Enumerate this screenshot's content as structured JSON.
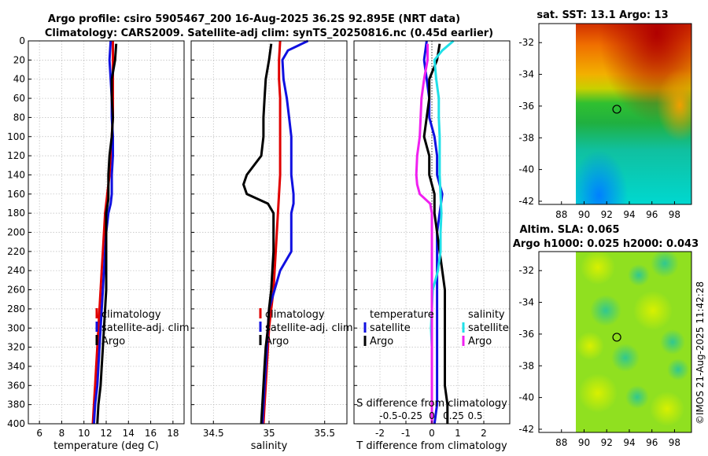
{
  "title_line1": "Argo profile: csiro 5905467_200 16-Aug-2025 36.2S 92.895E (NRT data)",
  "title_line2": "Climatology: CARS2009. Satellite-adj clim: synTS_20250816.nc (0.45d earlier)",
  "sst_title": "sat. SST: 13.1 Argo: 13",
  "sla_title1": "Altim. SLA: 0.065",
  "sla_title2": "Argo h1000: 0.025 h2000: 0.043",
  "watermark": "©IMOS 21-Aug-2025 11:42:28",
  "colors": {
    "climatology": "#e00000",
    "satellite": "#1010e0",
    "argo": "#000000",
    "s_satellite": "#20e0e8",
    "s_argo": "#f020f0"
  },
  "chart_data": [
    {
      "type": "line",
      "name": "temperature",
      "xlabel": "temperature (deg C)",
      "ylabel": "",
      "xlim": [
        5,
        19
      ],
      "ylim": [
        400,
        0
      ],
      "xticks": [
        "6",
        "8",
        "10",
        "12",
        "14",
        "16",
        "18"
      ],
      "yticks": [
        "0",
        "20",
        "40",
        "60",
        "80",
        "100",
        "120",
        "140",
        "160",
        "180",
        "200",
        "220",
        "240",
        "260",
        "280",
        "300",
        "320",
        "340",
        "360",
        "380",
        "400"
      ],
      "legend": [
        "climatology",
        "satellite-adj. clim",
        "Argo"
      ],
      "series": [
        {
          "name": "climatology",
          "color": "#e00000",
          "depth": [
            0,
            20,
            40,
            60,
            80,
            100,
            120,
            140,
            160,
            170,
            180,
            200,
            220,
            240,
            260,
            280,
            300,
            320,
            340,
            360,
            380,
            400
          ],
          "values": [
            12.6,
            12.6,
            12.6,
            12.6,
            12.6,
            12.5,
            12.4,
            12.3,
            12.1,
            12.0,
            11.9,
            11.8,
            11.7,
            11.6,
            11.5,
            11.4,
            11.3,
            11.2,
            11.1,
            11.0,
            10.9,
            10.8
          ]
        },
        {
          "name": "satellite-adj. clim",
          "color": "#1010e0",
          "depth": [
            0,
            20,
            40,
            60,
            80,
            100,
            120,
            140,
            160,
            170,
            180,
            200,
            220,
            240,
            260,
            280,
            300,
            320,
            340,
            360,
            380,
            400
          ],
          "values": [
            12.4,
            12.3,
            12.4,
            12.5,
            12.5,
            12.6,
            12.6,
            12.5,
            12.5,
            12.4,
            12.2,
            12.0,
            11.9,
            11.8,
            11.7,
            11.6,
            11.5,
            11.4,
            11.3,
            11.2,
            11.0,
            10.9
          ]
        },
        {
          "name": "Argo",
          "color": "#000000",
          "depth": [
            3,
            20,
            40,
            60,
            80,
            100,
            120,
            140,
            160,
            165,
            180,
            200,
            220,
            240,
            260,
            280,
            300,
            320,
            340,
            360,
            380,
            400
          ],
          "values": [
            12.9,
            12.8,
            12.5,
            12.5,
            12.6,
            12.5,
            12.3,
            12.2,
            12.2,
            12.2,
            12.0,
            12.0,
            12.0,
            12.0,
            12.0,
            11.9,
            11.8,
            11.7,
            11.6,
            11.5,
            11.3,
            11.2
          ]
        }
      ]
    },
    {
      "type": "line",
      "name": "salinity",
      "xlabel": "salinity",
      "xlim": [
        34.3,
        35.7
      ],
      "ylim": [
        400,
        0
      ],
      "xticks": [
        "34.5",
        "35",
        "35.5"
      ],
      "legend": [
        "climatology",
        "satellite-adj. clim",
        "Argo"
      ],
      "series": [
        {
          "name": "climatology",
          "color": "#e00000",
          "depth": [
            0,
            20,
            40,
            60,
            80,
            100,
            120,
            140,
            160,
            180,
            200,
            220,
            240,
            260,
            280,
            300,
            320,
            340,
            360,
            380,
            400
          ],
          "values": [
            35.1,
            35.09,
            35.09,
            35.1,
            35.1,
            35.1,
            35.1,
            35.1,
            35.09,
            35.08,
            35.07,
            35.06,
            35.05,
            35.04,
            35.02,
            35.0,
            34.99,
            34.98,
            34.97,
            34.96,
            34.95
          ]
        },
        {
          "name": "satellite-adj. clim",
          "color": "#1010e0",
          "depth": [
            0,
            10,
            20,
            40,
            60,
            80,
            100,
            120,
            140,
            160,
            170,
            180,
            200,
            220,
            240,
            260,
            280,
            300,
            320,
            340,
            360,
            380,
            400
          ],
          "values": [
            35.35,
            35.17,
            35.12,
            35.13,
            35.16,
            35.18,
            35.2,
            35.2,
            35.2,
            35.22,
            35.22,
            35.2,
            35.2,
            35.2,
            35.1,
            35.05,
            35.0,
            34.99,
            34.98,
            34.97,
            34.96,
            34.95,
            34.94
          ]
        },
        {
          "name": "Argo",
          "color": "#000000",
          "depth": [
            3,
            20,
            40,
            60,
            80,
            100,
            120,
            140,
            150,
            160,
            170,
            180,
            200,
            220,
            240,
            260,
            280,
            300,
            320,
            340,
            360,
            380,
            400
          ],
          "values": [
            35.02,
            35.0,
            34.97,
            34.96,
            34.95,
            34.95,
            34.93,
            34.8,
            34.77,
            34.8,
            34.99,
            35.04,
            35.04,
            35.04,
            35.03,
            35.02,
            35.0,
            34.99,
            34.97,
            34.96,
            34.95,
            34.94,
            34.93
          ]
        }
      ]
    },
    {
      "type": "line",
      "name": "difference from climatology",
      "xlabel": "T difference from climatology",
      "xlabel_top": "S difference from climatology",
      "xlim": [
        -3,
        3
      ],
      "ylim": [
        400,
        0
      ],
      "xticks": [
        "-2",
        "-1",
        "0",
        "1",
        "2"
      ],
      "xticks_top": [
        "-0.5",
        "-0.25",
        "0",
        "0.25",
        "0.5"
      ],
      "legend_temperature": {
        "title": "temperature",
        "items": [
          "satellite",
          "Argo"
        ]
      },
      "legend_salinity": {
        "title": "salinity",
        "items": [
          "satellite",
          "Argo"
        ]
      },
      "series": [
        {
          "name": "temperature satellite",
          "color": "#1010e0",
          "depth": [
            0,
            20,
            40,
            60,
            80,
            100,
            120,
            140,
            160,
            180,
            200,
            220,
            240,
            260,
            280,
            300,
            320,
            340,
            360,
            380,
            400
          ],
          "values": [
            -0.2,
            -0.3,
            -0.2,
            -0.1,
            -0.1,
            0.1,
            0.2,
            0.2,
            0.4,
            0.3,
            0.2,
            0.2,
            0.2,
            0.2,
            0.2,
            0.2,
            0.2,
            0.2,
            0.2,
            0.2,
            0.1
          ]
        },
        {
          "name": "temperature Argo",
          "color": "#000000",
          "depth": [
            3,
            20,
            40,
            60,
            80,
            100,
            120,
            140,
            160,
            180,
            200,
            220,
            240,
            260,
            280,
            300,
            320,
            340,
            360,
            380,
            400
          ],
          "values": [
            0.3,
            0.2,
            -0.1,
            -0.1,
            -0.2,
            -0.3,
            -0.1,
            -0.1,
            0.1,
            0.1,
            0.2,
            0.3,
            0.4,
            0.5,
            0.5,
            0.5,
            0.5,
            0.5,
            0.5,
            0.6,
            0.6
          ]
        },
        {
          "name": "salinity satellite",
          "color": "#20e0e8",
          "depth": [
            0,
            10,
            20,
            40,
            60,
            80,
            100,
            120,
            140,
            160,
            180,
            200,
            220,
            240,
            260,
            280,
            300,
            320,
            340,
            360,
            380,
            400
          ],
          "values": [
            0.25,
            0.12,
            0.03,
            0.05,
            0.08,
            0.08,
            0.09,
            0.09,
            0.09,
            0.1,
            0.11,
            0.1,
            0.1,
            0.07,
            0.01,
            0.0,
            -0.01,
            0.0,
            0.0,
            0.0,
            0.0,
            0.0
          ]
        },
        {
          "name": "salinity Argo",
          "color": "#f020f0",
          "depth": [
            3,
            20,
            40,
            60,
            80,
            100,
            120,
            140,
            150,
            160,
            170,
            180,
            200,
            260,
            300,
            400
          ],
          "values": [
            -0.05,
            -0.05,
            -0.09,
            -0.12,
            -0.13,
            -0.14,
            -0.17,
            -0.18,
            -0.17,
            -0.14,
            -0.02,
            0.0,
            0.0,
            0.0,
            0.0,
            0.0
          ]
        }
      ]
    },
    {
      "type": "heatmap",
      "name": "sat. SST map",
      "xlim": [
        86,
        99.5
      ],
      "ylim": [
        -42.2,
        -30.8
      ],
      "xticks": [
        "88",
        "90",
        "92",
        "94",
        "96",
        "98"
      ],
      "yticks": [
        "-32",
        "-34",
        "-36",
        "-38",
        "-40",
        "-42"
      ],
      "marker": {
        "lon": 92.895,
        "lat": -36.2
      }
    },
    {
      "type": "heatmap",
      "name": "altimetry SLA map",
      "xlim": [
        86,
        99.5
      ],
      "ylim": [
        -42.2,
        -30.8
      ],
      "xticks": [
        "88",
        "90",
        "92",
        "94",
        "96",
        "98"
      ],
      "yticks": [
        "-32",
        "-34",
        "-36",
        "-38",
        "-40",
        "-42"
      ],
      "marker": {
        "lon": 92.895,
        "lat": -36.2
      }
    }
  ]
}
